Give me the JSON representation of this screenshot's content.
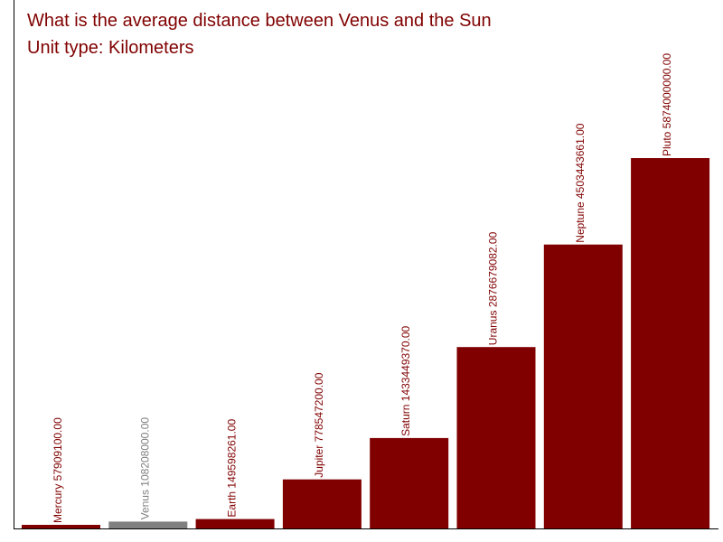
{
  "title": "What is the average distance between Venus and the Sun",
  "subtitle": "Unit type: Kilometers",
  "colors": {
    "bar": "#800000",
    "highlight": "#808080",
    "axis": "#000000"
  },
  "chart_data": {
    "type": "bar",
    "title": "What is the average distance between Venus and the Sun",
    "subtitle": "Unit type: Kilometers",
    "categories": [
      "Mercury",
      "Venus",
      "Earth",
      "Jupiter",
      "Saturn",
      "Uranus",
      "Neptune",
      "Pluto"
    ],
    "values": [
      57909100.0,
      108208000.0,
      149598261.0,
      778547200.0,
      1433449370.0,
      2876679082.0,
      4503443661.0,
      5874000000.0
    ],
    "labels": [
      "Mercury 57909100.00",
      "Venus 108208000.00",
      "Earth 149598261.00",
      "Jupiter 778547200.00",
      "Saturn 1433449370.00",
      "Uranus 2876679082.00",
      "Neptune 4503443661.00",
      "Pluto 5874000000.00"
    ],
    "highlighted": "Venus",
    "xlabel": "",
    "ylabel": "",
    "grid": false
  }
}
